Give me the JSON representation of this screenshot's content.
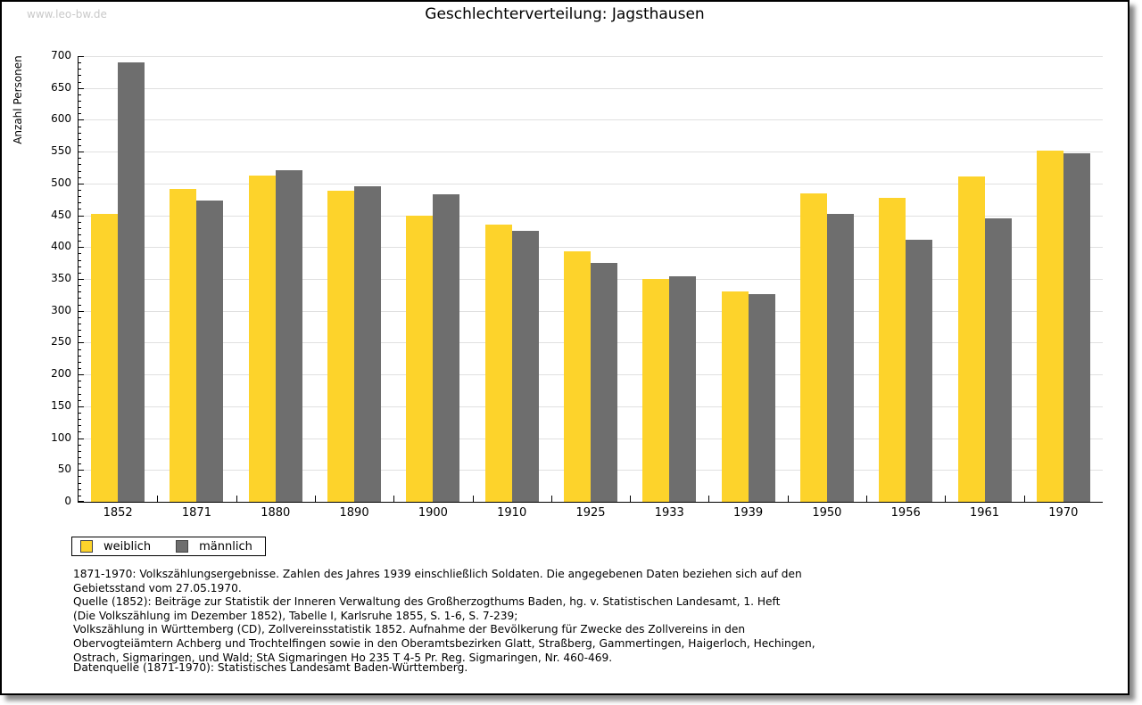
{
  "watermark": "www.leo-bw.de",
  "title": "Geschlechterverteilung: Jagsthausen",
  "chart_data": {
    "type": "bar",
    "title": "Geschlechterverteilung: Jagsthausen",
    "xlabel": "",
    "ylabel": "Anzahl Personen",
    "ylim": [
      0,
      700
    ],
    "ytick_step": 50,
    "minor_tick_step": 10,
    "grid": true,
    "legend_position": "bottom-left",
    "categories": [
      "1852",
      "1871",
      "1880",
      "1890",
      "1900",
      "1910",
      "1925",
      "1933",
      "1939",
      "1950",
      "1956",
      "1961",
      "1970"
    ],
    "series": [
      {
        "name": "weiblich",
        "color": "#FDD32B",
        "values": [
          452,
          492,
          512,
          489,
          450,
          435,
          394,
          350,
          331,
          484,
          477,
          511,
          551
        ]
      },
      {
        "name": "männlich",
        "color": "#6E6E6E",
        "values": [
          690,
          473,
          521,
          496,
          483,
          425,
          375,
          354,
          326,
          452,
          411,
          445,
          547
        ]
      }
    ]
  },
  "footnotes": {
    "lines": [
      "1871-1970: Volkszählungsergebnisse. Zahlen des Jahres 1939 einschließlich Soldaten. Die angegebenen Daten beziehen sich auf den",
      "Gebietsstand vom 27.05.1970.",
      "Quelle (1852): Beiträge zur Statistik der Inneren Verwaltung des Großherzogthums Baden, hg. v. Statistischen Landesamt, 1. Heft",
      "(Die Volkszählung im Dezember 1852), Tabelle I, Karlsruhe 1855, S. 1-6, S. 7-239;",
      "Volkszählung in Württemberg (CD), Zollvereinsstatistik 1852. Aufnahme der Bevölkerung für Zwecke des Zollvereins in den",
      "Obervogteiämtern Achberg und Trochtelfingen sowie in den Oberamtsbezirken Glatt, Straßberg, Gammertingen, Haigerloch, Hechingen,",
      "Ostrach, Sigmaringen, und Wald; StA Sigmaringen Ho 235 T 4-5 Pr. Reg. Sigmaringen, Nr. 460-469."
    ],
    "datasource": "Datenquelle (1871-1970): Statistisches Landesamt Baden-Württemberg."
  },
  "colors": {
    "weiblich": "#FDD32B",
    "männlich": "#6E6E6E",
    "gridline": "#E0E0E0",
    "watermark": "#C9C9C9",
    "axis": "#000000"
  }
}
